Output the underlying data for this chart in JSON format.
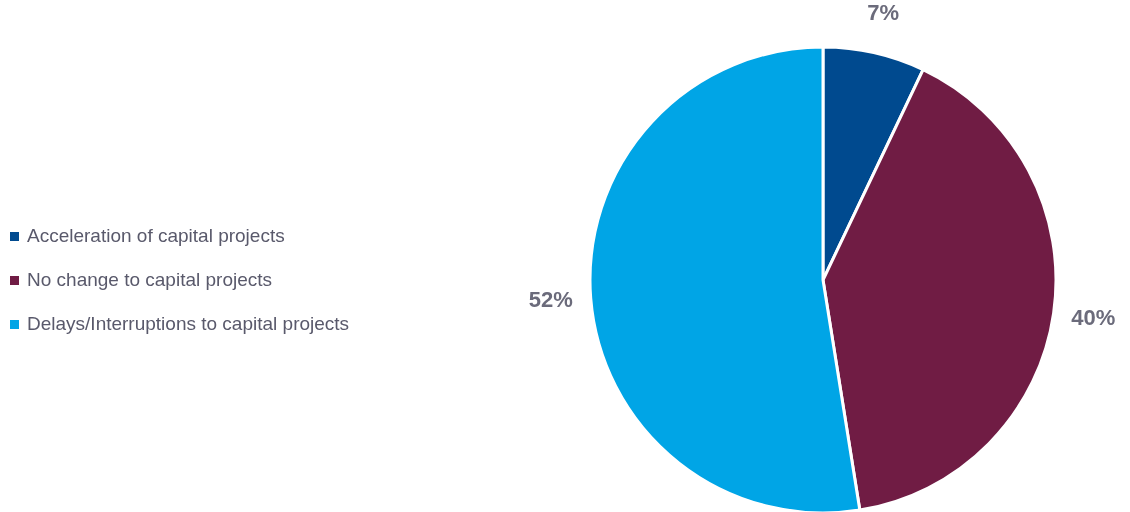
{
  "chart_data": {
    "type": "pie",
    "categories": [
      "Acceleration of capital projects",
      "No change to capital projects",
      "Delays/Interruptions to capital projects"
    ],
    "values": [
      7,
      40,
      52
    ],
    "colors": [
      "#004a8f",
      "#701c44",
      "#00a5e6"
    ],
    "value_labels": [
      "7%",
      "40%",
      "52%"
    ],
    "legend": "left"
  }
}
